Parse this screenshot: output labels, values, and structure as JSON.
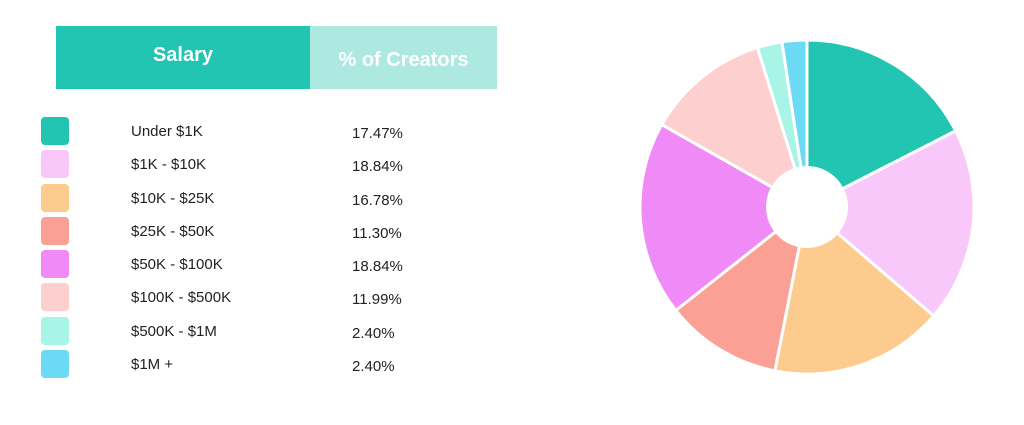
{
  "table": {
    "header_salary": "Salary",
    "header_pct": "% of Creators"
  },
  "chart_data": {
    "type": "pie",
    "title": "",
    "categories": [
      "Under $1K",
      "$1K - $10K",
      "$10K - $25K",
      "$25K - $50K",
      "$50K - $100K",
      "$100K - $500K",
      "$500K - $1M",
      "$1M +"
    ],
    "values": [
      17.47,
      18.84,
      16.78,
      11.3,
      18.84,
      11.99,
      2.4,
      2.4
    ],
    "value_labels": [
      "17.47%",
      "18.84%",
      "16.78%",
      "11.30%",
      "18.84%",
      "11.99%",
      "2.40%",
      "2.40%"
    ],
    "colors": [
      "#22c5b2",
      "#f9c8fb",
      "#fdcb8d",
      "#fba094",
      "#ef8af6",
      "#fdcfcf",
      "#a8f5e8",
      "#6cdaf4"
    ],
    "donut_hole": true,
    "start": "top",
    "direction": "clockwise",
    "legend": "left"
  }
}
